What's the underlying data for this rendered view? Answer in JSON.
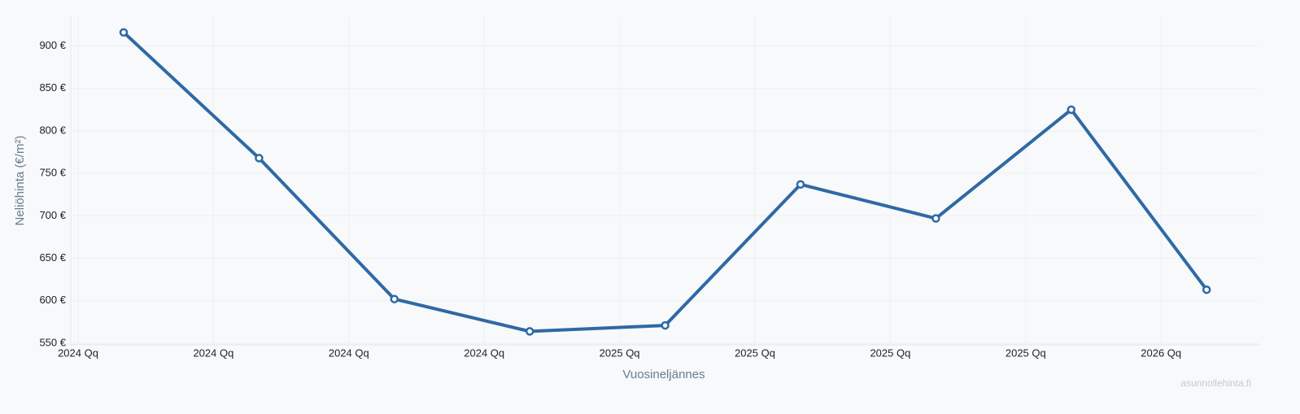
{
  "chart_data": {
    "type": "line",
    "x_label": "Vuosineljännes",
    "y_label": "Neliöhinta (€/m²)",
    "watermark": "asunnollehinta.fi",
    "categories": [
      "2024 Qq",
      "2024 Qq",
      "2024 Qq",
      "2024 Qq",
      "2025 Qq",
      "2025 Qq",
      "2025 Qq",
      "2025 Qq",
      "2026 Qq"
    ],
    "series": [
      {
        "name": "Neliöhinta",
        "color": "#2f69a5",
        "values": [
          916,
          768,
          602,
          564,
          571,
          737,
          697,
          825,
          613
        ]
      }
    ],
    "ylim": [
      550,
      935
    ],
    "yticks": [
      {
        "value": 550,
        "label": "550 €"
      },
      {
        "value": 600,
        "label": "600 €"
      },
      {
        "value": 650,
        "label": "650 €"
      },
      {
        "value": 700,
        "label": "700 €"
      },
      {
        "value": 750,
        "label": "750 €"
      },
      {
        "value": 800,
        "label": "800 €"
      },
      {
        "value": 850,
        "label": "850 €"
      },
      {
        "value": 900,
        "label": "900 €"
      }
    ],
    "grid": true
  }
}
